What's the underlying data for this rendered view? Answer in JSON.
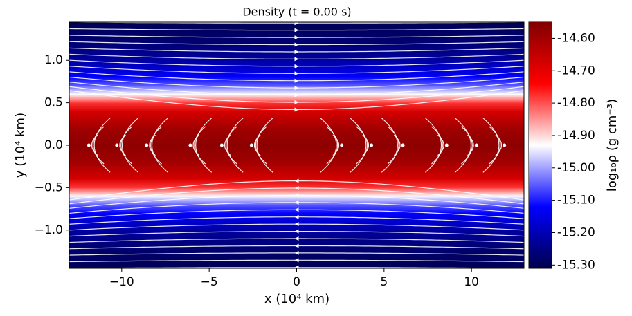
{
  "chart_data": {
    "type": "field",
    "title": "Density (t = 0.00 s)",
    "x_label": "x (10⁴ km)",
    "y_label": "y (10⁴ km)",
    "colorbar_label": "log₁₀ρ (g cm⁻³)",
    "xlim": [
      -13,
      13
    ],
    "ylim": [
      -1.45,
      1.45
    ],
    "xticks": [
      {
        "value": -10,
        "label": "−10"
      },
      {
        "value": -5,
        "label": "−5"
      },
      0,
      5,
      10
    ],
    "yticks": [
      {
        "value": -1.0,
        "label": "−1.0"
      },
      {
        "value": -0.5,
        "label": "−0.5"
      },
      {
        "value": 0.0,
        "label": "0.0"
      },
      {
        "value": 0.5,
        "label": "0.5"
      },
      {
        "value": 1.0,
        "label": "1.0"
      }
    ],
    "clim": [
      -15.31,
      -14.55
    ],
    "cticks": [
      {
        "value": -14.6,
        "label": "-14.60"
      },
      {
        "value": -14.7,
        "label": "-14.70"
      },
      {
        "value": -14.8,
        "label": "-14.80"
      },
      {
        "value": -14.9,
        "label": "-14.90"
      },
      {
        "value": -15.0,
        "label": "-15.00"
      },
      {
        "value": -15.1,
        "label": "-15.10"
      },
      {
        "value": -15.2,
        "label": "-15.20"
      },
      {
        "value": -15.3,
        "label": "-15.30"
      }
    ],
    "colormap": [
      "#00004c",
      "#0000ff",
      "#ffffff",
      "#ff0000",
      "#800000"
    ],
    "profile": {
      "y": [
        -1.45,
        -1.2,
        -1.0,
        -0.8,
        -0.7,
        -0.6,
        -0.5,
        -0.4,
        -0.2,
        0.0,
        0.2,
        0.4,
        0.5,
        0.6,
        0.7,
        0.8,
        1.0,
        1.2,
        1.45
      ],
      "values": [
        -15.3,
        -15.27,
        -15.22,
        -15.12,
        -15.05,
        -14.93,
        -14.78,
        -14.68,
        -14.6,
        -14.57,
        -14.6,
        -14.68,
        -14.78,
        -14.93,
        -15.05,
        -15.12,
        -15.22,
        -15.27,
        -15.3
      ]
    }
  }
}
